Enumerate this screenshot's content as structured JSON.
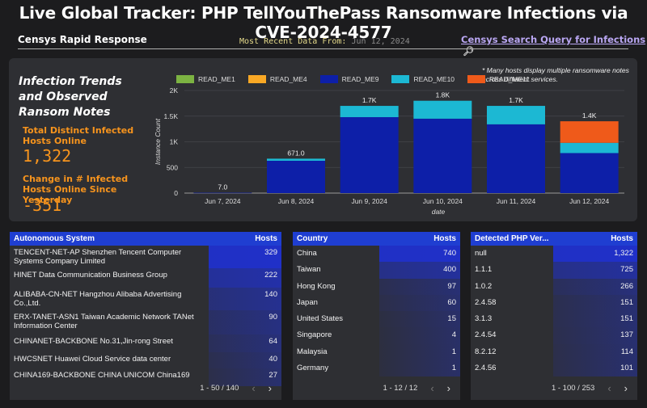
{
  "header": {
    "title": "Live Global Tracker: PHP TellYouThePass Ransomware Infections via CVE-2024-4577",
    "brand": "Censys Rapid Response",
    "recent_label": "Most Recent Data From:",
    "recent_value": "Jun 12, 2024",
    "query_link": "Censys Search Query for Infections"
  },
  "panel": {
    "title": "Infection Trends and Observed Ransom Notes",
    "stat1_label": "Total Distinct Infected Hosts Online",
    "stat1_value": "1,322",
    "stat2_label": "Change in # Infected Hosts Online Since Yesterday",
    "stat2_value": "-351",
    "note": "* Many hosts display multiple ransomware notes across different services."
  },
  "colors": {
    "READ_ME1": "#7cb342",
    "READ_ME4": "#f9a825",
    "READ_ME9": "#0d1fa8",
    "READ_ME10": "#1cb8d3",
    "READ_ME11": "#ef5a1a",
    "header_blue": "#1f3ed1",
    "accent_orange": "#f7941d"
  },
  "chart_data": {
    "type": "bar",
    "stacked": true,
    "categories": [
      "Jun 7, 2024",
      "Jun 8, 2024",
      "Jun 9, 2024",
      "Jun 10, 2024",
      "Jun 11, 2024",
      "Jun 12, 2024"
    ],
    "series": [
      {
        "name": "READ_ME1",
        "values": [
          0,
          0,
          0,
          0,
          0,
          0
        ]
      },
      {
        "name": "READ_ME4",
        "values": [
          0,
          0,
          0,
          0,
          0,
          0
        ]
      },
      {
        "name": "READ_ME9",
        "values": [
          7,
          630,
          1480,
          1450,
          1340,
          780
        ]
      },
      {
        "name": "READ_ME10",
        "values": [
          0,
          41,
          220,
          350,
          360,
          200
        ]
      },
      {
        "name": "READ_ME11",
        "values": [
          0,
          0,
          0,
          0,
          0,
          420
        ]
      }
    ],
    "totals": [
      "7.0",
      "671.0",
      "1.7K",
      "1.8K",
      "1.7K",
      "1.4K"
    ],
    "xlabel": "date",
    "ylabel": "Instance Count",
    "yticks": [
      "0",
      "500",
      "1K",
      "1.5K",
      "2K"
    ],
    "ylim": [
      0,
      2000
    ],
    "legend_position": "top"
  },
  "as_table": {
    "headers": [
      "Autonomous System",
      "Hosts"
    ],
    "max": 329,
    "rows": [
      {
        "name": "TENCENT-NET-AP Shenzhen Tencent Computer Systems Company Limited",
        "value": 329
      },
      {
        "name": "HINET Data Communication Business Group",
        "value": 222
      },
      {
        "name": "ALIBABA-CN-NET Hangzhou Alibaba Advertising Co.,Ltd.",
        "value": 140
      },
      {
        "name": "ERX-TANET-ASN1 Taiwan Academic Network TANet Information Center",
        "value": 90
      },
      {
        "name": "CHINANET-BACKBONE No.31,Jin-rong Street",
        "value": 64
      },
      {
        "name": "HWCSNET Huawei Cloud Service data center",
        "value": 40
      },
      {
        "name": "CHINA169-BACKBONE CHINA UNICOM China169",
        "value": 27
      }
    ],
    "pager": "1 - 50 / 140"
  },
  "country_table": {
    "headers": [
      "Country",
      "Hosts"
    ],
    "max": 740,
    "rows": [
      {
        "name": "China",
        "value": 740
      },
      {
        "name": "Taiwan",
        "value": 400
      },
      {
        "name": "Hong Kong",
        "value": 97
      },
      {
        "name": "Japan",
        "value": 60
      },
      {
        "name": "United States",
        "value": 15
      },
      {
        "name": "Singapore",
        "value": 4
      },
      {
        "name": "Malaysia",
        "value": 1
      },
      {
        "name": "Germany",
        "value": 1
      }
    ],
    "pager": "1 - 12 / 12"
  },
  "php_table": {
    "headers": [
      "Detected PHP Ver...",
      "Hosts"
    ],
    "max": 1322,
    "rows": [
      {
        "name": "null",
        "value": "1,322",
        "num": 1322
      },
      {
        "name": "1.1.1",
        "value": "725",
        "num": 725
      },
      {
        "name": "1.0.2",
        "value": "266",
        "num": 266
      },
      {
        "name": "2.4.58",
        "value": "151",
        "num": 151
      },
      {
        "name": "3.1.3",
        "value": "151",
        "num": 151
      },
      {
        "name": "2.4.54",
        "value": "137",
        "num": 137
      },
      {
        "name": "8.2.12",
        "value": "114",
        "num": 114
      },
      {
        "name": "2.4.56",
        "value": "101",
        "num": 101
      }
    ],
    "pager": "1 - 100 / 253"
  }
}
